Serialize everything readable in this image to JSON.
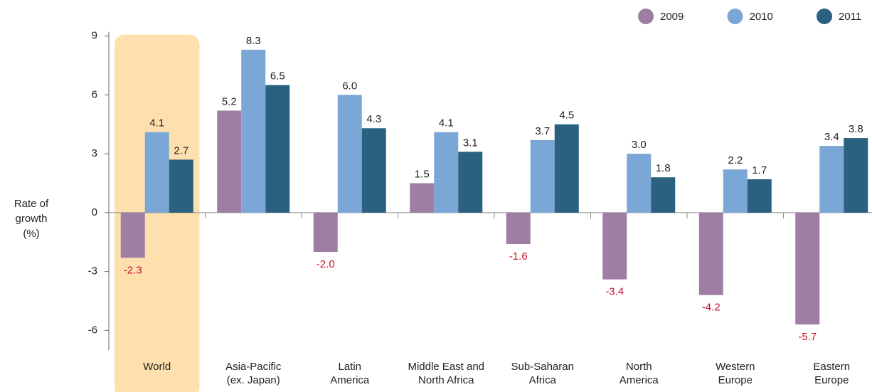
{
  "chart_data": {
    "type": "bar",
    "y_label": [
      "Rate of",
      "growth",
      "(%)"
    ],
    "categories": [
      [
        "World"
      ],
      [
        "Asia-Pacific",
        "(ex. Japan)"
      ],
      [
        "Latin",
        "America"
      ],
      [
        "Middle East and",
        "North Africa"
      ],
      [
        "Sub-Saharan",
        "Africa"
      ],
      [
        "North",
        "America"
      ],
      [
        "Western",
        "Europe"
      ],
      [
        "Eastern",
        "Europe"
      ]
    ],
    "series": [
      {
        "name": "2009",
        "color": "#9e7fa3",
        "values": [
          -2.3,
          5.2,
          -2.0,
          1.5,
          -1.6,
          -3.4,
          -4.2,
          -5.7
        ],
        "value_labels": [
          "-2.3",
          "5.2",
          "-2.0",
          "1.5",
          "-1.6",
          "-3.4",
          "-4.2",
          "-5.7"
        ]
      },
      {
        "name": "2010",
        "color": "#7ba7d7",
        "values": [
          4.1,
          8.3,
          6.0,
          4.1,
          3.7,
          3.0,
          2.2,
          3.4
        ],
        "value_labels": [
          "4.1",
          "8.3",
          "6.0",
          "4.1",
          "3.7",
          "3.0",
          "2.2",
          "3.4"
        ]
      },
      {
        "name": "2011",
        "color": "#2a6080",
        "values": [
          2.7,
          6.5,
          4.3,
          3.1,
          4.5,
          1.8,
          1.7,
          3.8
        ],
        "value_labels": [
          "2.7",
          "6.5",
          "4.3",
          "3.1",
          "4.5",
          "1.8",
          "1.7",
          "3.8"
        ]
      }
    ],
    "negative_label_color": "#c8102e",
    "highlight_color": "#fde0ad",
    "ylim": [
      -7,
      9
    ],
    "yticks": [
      9,
      6,
      3,
      0,
      -3,
      -6
    ],
    "legend": "top-right"
  }
}
